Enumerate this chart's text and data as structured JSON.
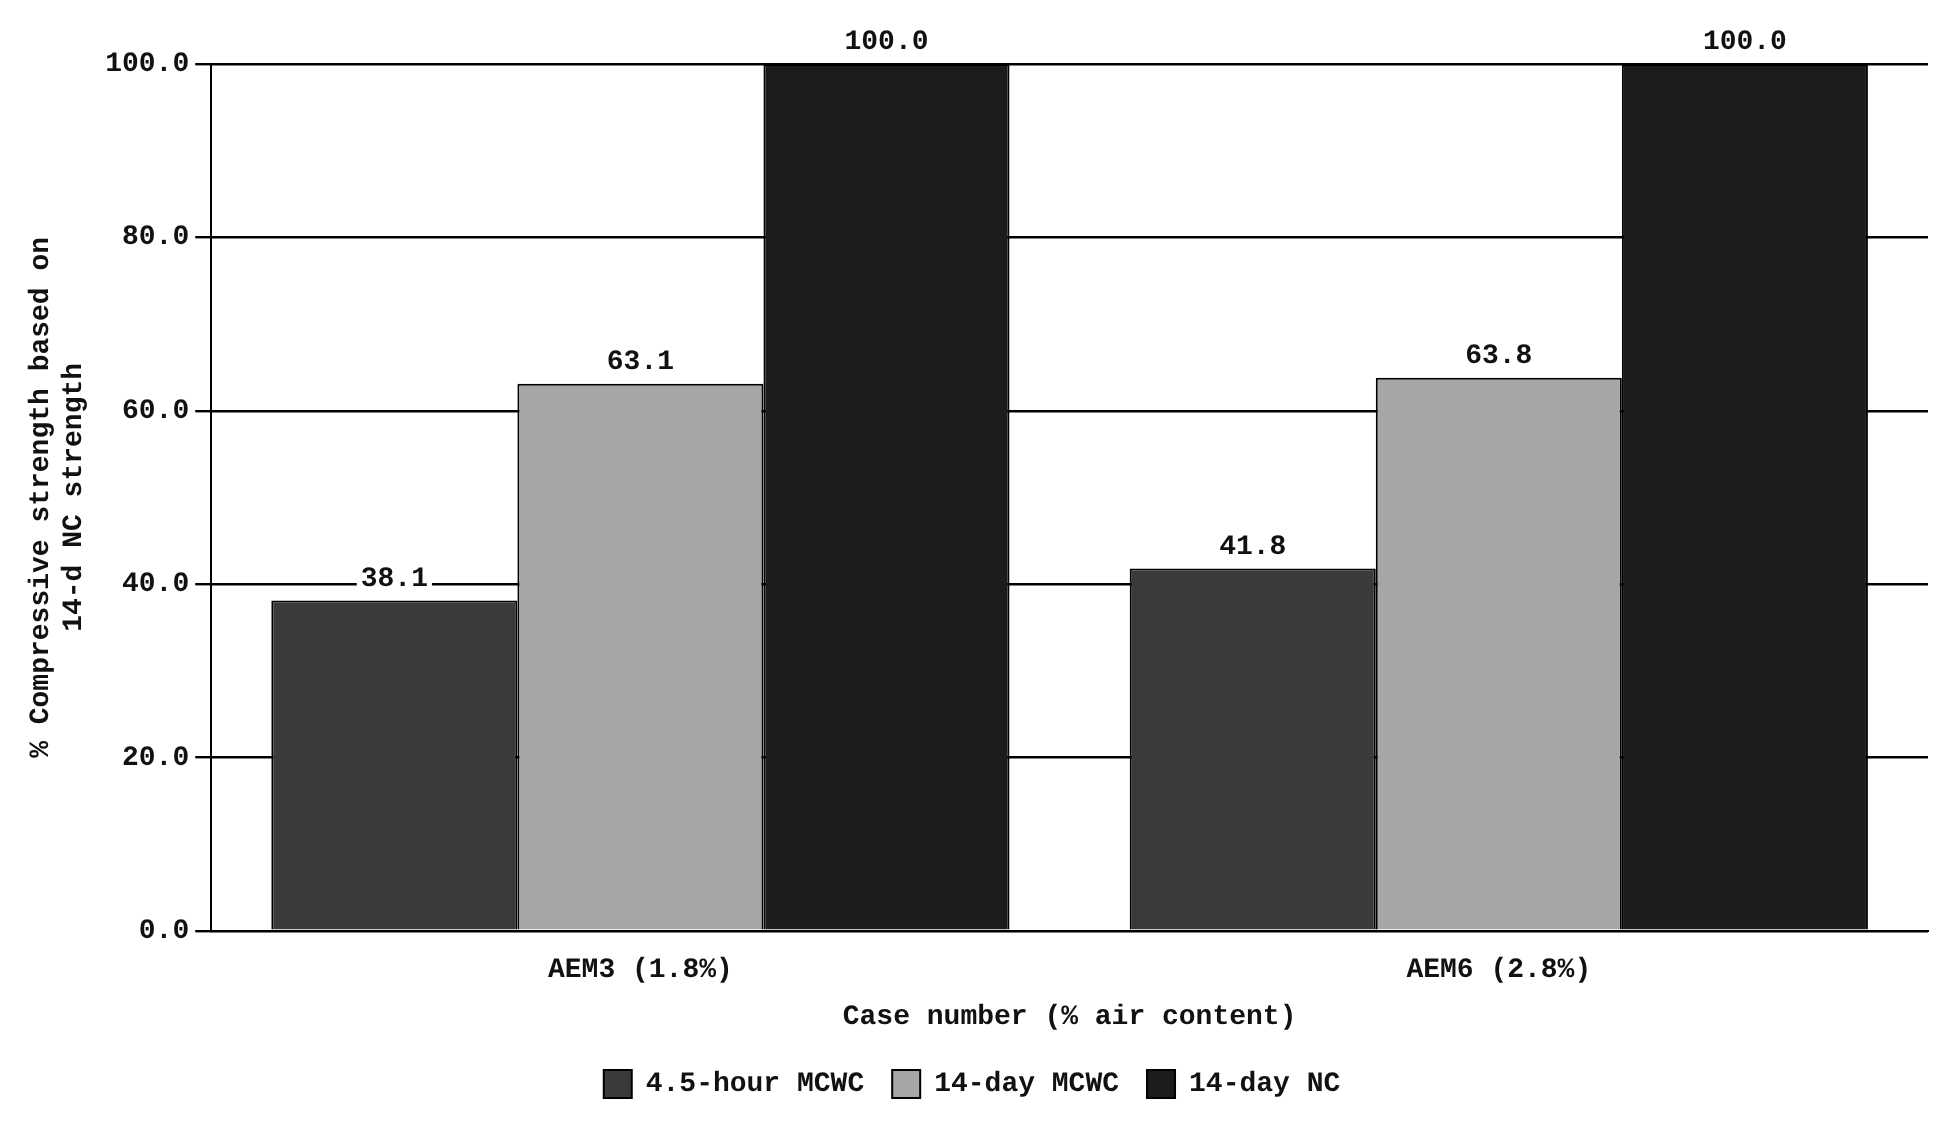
{
  "chart_data": {
    "type": "bar",
    "xlabel": "Case number (% air content)",
    "ylabel": "% Compressive strength based on\n14-d NC strength",
    "categories": [
      "AEM3 (1.8%)",
      "AEM6 (2.8%)"
    ],
    "series": [
      {
        "name": "4.5-hour MCWC",
        "color": "#3a3a3a",
        "values": [
          38.1,
          41.8
        ],
        "value_labels": [
          "38.1",
          "41.8"
        ]
      },
      {
        "name": "14-day MCWC",
        "color": "#a6a6a6",
        "values": [
          63.1,
          63.8
        ],
        "value_labels": [
          "63.1",
          "63.8"
        ]
      },
      {
        "name": "14-day NC",
        "color": "#1c1c1c",
        "values": [
          100.0,
          100.0
        ],
        "value_labels": [
          "100.0",
          "100.0"
        ]
      }
    ],
    "ylim": [
      0,
      100
    ],
    "yticks": [
      {
        "value": 0,
        "label": "0.0"
      },
      {
        "value": 20,
        "label": "20.0"
      },
      {
        "value": 40,
        "label": "40.0"
      },
      {
        "value": 60,
        "label": "60.0"
      },
      {
        "value": 80,
        "label": "80.0"
      },
      {
        "value": 100,
        "label": "100.0"
      }
    ],
    "grid": "y",
    "legend": "bottom"
  }
}
